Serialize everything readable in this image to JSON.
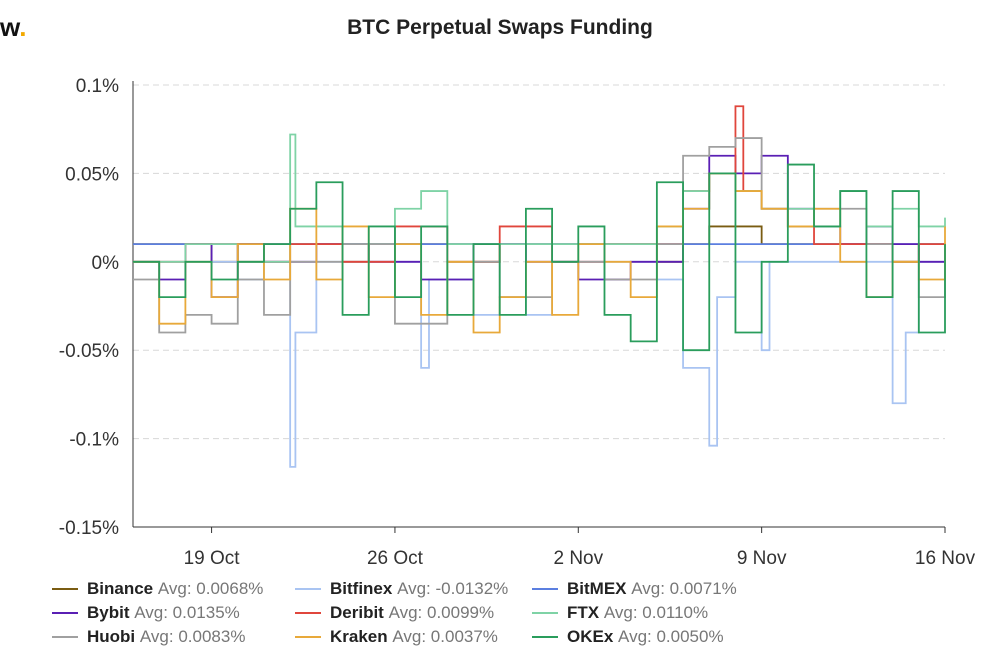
{
  "brand": {
    "text": "w",
    "dot": "."
  },
  "chart_data": {
    "type": "line",
    "title": "BTC Perpetual Swaps Funding",
    "xlabel": "",
    "ylabel": "",
    "x_ticks": [
      "19 Oct",
      "26 Oct",
      "2 Nov",
      "9 Nov",
      "16 Nov"
    ],
    "x_range": [
      "2020-10-16",
      "2020-11-17"
    ],
    "y_ticks": [
      "0.1%",
      "0.05%",
      "0%",
      "-0.05%",
      "-0.1%",
      "-0.15%"
    ],
    "ylim": [
      -0.15,
      0.1
    ],
    "grid": "horizontal dashed",
    "legend_position": "bottom",
    "series": [
      {
        "name": "Binance",
        "avg_label": "Avg: 0.0068%",
        "color": "#7a5c12",
        "values": [
          [
            0,
            0.01
          ],
          [
            1,
            0.01
          ],
          [
            2,
            0.01
          ],
          [
            3,
            0.0
          ],
          [
            4,
            0.01
          ],
          [
            5,
            0.01
          ],
          [
            6,
            0.01
          ],
          [
            7,
            0.01
          ],
          [
            8,
            0.0
          ],
          [
            9,
            0.01
          ],
          [
            10,
            0.01
          ],
          [
            11,
            0.01
          ],
          [
            12,
            0.01
          ],
          [
            13,
            0.0
          ],
          [
            14,
            0.01
          ],
          [
            15,
            0.01
          ],
          [
            16,
            0.01
          ],
          [
            17,
            0.01
          ],
          [
            18,
            0.01
          ],
          [
            19,
            0.01
          ],
          [
            20,
            0.0
          ],
          [
            21,
            0.01
          ],
          [
            22,
            0.02
          ],
          [
            23,
            0.02
          ],
          [
            24,
            0.01
          ],
          [
            25,
            0.01
          ],
          [
            26,
            0.01
          ],
          [
            27,
            0.01
          ],
          [
            28,
            0.01
          ],
          [
            29,
            0.0
          ],
          [
            30,
            0.01
          ],
          [
            31,
            0.01
          ]
        ]
      },
      {
        "name": "Bitfinex",
        "avg_label": "Avg: -0.0132%",
        "color": "#a9c4f2",
        "values": [
          [
            0,
            0.0
          ],
          [
            4,
            -0.01
          ],
          [
            5,
            -0.0
          ],
          [
            6,
            -0.116
          ],
          [
            6.2,
            -0.04
          ],
          [
            7,
            -0.0
          ],
          [
            10,
            -0.0
          ],
          [
            11,
            -0.06
          ],
          [
            11.3,
            -0.01
          ],
          [
            13,
            -0.03
          ],
          [
            14,
            -0.02
          ],
          [
            15,
            -0.03
          ],
          [
            16,
            -0.0
          ],
          [
            18,
            -0.0
          ],
          [
            20,
            -0.01
          ],
          [
            21,
            -0.06
          ],
          [
            22,
            -0.104
          ],
          [
            22.3,
            -0.02
          ],
          [
            23,
            0.0
          ],
          [
            24,
            -0.05
          ],
          [
            24.3,
            0.0
          ],
          [
            25,
            -0.0
          ],
          [
            26,
            -0.0
          ],
          [
            28,
            -0.0
          ],
          [
            29,
            -0.08
          ],
          [
            29.5,
            -0.04
          ],
          [
            30,
            -0.0
          ],
          [
            31,
            0.0
          ]
        ]
      },
      {
        "name": "BitMEX",
        "avg_label": "Avg: 0.0071%",
        "color": "#5b7fe0",
        "values": [
          [
            0,
            0.01
          ],
          [
            31,
            0.01
          ]
        ]
      },
      {
        "name": "Bybit",
        "avg_label": "Avg: 0.0135%",
        "color": "#5a1fb4",
        "values": [
          [
            0,
            0.0
          ],
          [
            1,
            -0.01
          ],
          [
            2,
            0.01
          ],
          [
            3,
            -0.02
          ],
          [
            4,
            0.01
          ],
          [
            5,
            0.0
          ],
          [
            7,
            0.01
          ],
          [
            9,
            0.0
          ],
          [
            11,
            -0.01
          ],
          [
            13,
            0.01
          ],
          [
            15,
            0.0
          ],
          [
            17,
            -0.01
          ],
          [
            19,
            0.0
          ],
          [
            21,
            0.03
          ],
          [
            22,
            0.06
          ],
          [
            23,
            0.05
          ],
          [
            24,
            0.06
          ],
          [
            25,
            0.03
          ],
          [
            26,
            0.02
          ],
          [
            27,
            0.01
          ],
          [
            28,
            0.02
          ],
          [
            29,
            0.01
          ],
          [
            30,
            0.0
          ],
          [
            31,
            0.0
          ]
        ]
      },
      {
        "name": "Deribit",
        "avg_label": "Avg: 0.0099%",
        "color": "#e0463c",
        "values": [
          [
            0,
            0.0
          ],
          [
            2,
            0.01
          ],
          [
            4,
            0.0
          ],
          [
            6,
            0.01
          ],
          [
            8,
            0.0
          ],
          [
            10,
            0.02
          ],
          [
            12,
            0.0
          ],
          [
            14,
            0.02
          ],
          [
            16,
            0.0
          ],
          [
            18,
            0.01
          ],
          [
            20,
            0.01
          ],
          [
            21,
            0.04
          ],
          [
            22,
            0.05
          ],
          [
            23,
            0.088
          ],
          [
            23.3,
            0.04
          ],
          [
            24,
            0.03
          ],
          [
            25,
            0.02
          ],
          [
            26,
            0.01
          ],
          [
            28,
            0.01
          ],
          [
            29,
            0.0
          ],
          [
            30,
            0.01
          ],
          [
            31,
            0.0
          ]
        ]
      },
      {
        "name": "FTX",
        "avg_label": "Avg: 0.0110%",
        "color": "#7fd3a6",
        "values": [
          [
            0,
            0.0
          ],
          [
            2,
            0.01
          ],
          [
            4,
            0.0
          ],
          [
            6,
            0.072
          ],
          [
            6.2,
            0.02
          ],
          [
            8,
            0.01
          ],
          [
            10,
            0.03
          ],
          [
            11,
            0.04
          ],
          [
            12,
            0.01
          ],
          [
            14,
            0.01
          ],
          [
            16,
            0.01
          ],
          [
            18,
            0.01
          ],
          [
            20,
            0.02
          ],
          [
            21,
            0.04
          ],
          [
            22,
            0.05
          ],
          [
            23,
            0.04
          ],
          [
            24,
            0.03
          ],
          [
            25,
            0.03
          ],
          [
            26,
            0.02
          ],
          [
            27,
            0.04
          ],
          [
            28,
            0.02
          ],
          [
            29,
            0.03
          ],
          [
            30,
            0.02
          ],
          [
            31,
            0.025
          ]
        ]
      },
      {
        "name": "Huobi",
        "avg_label": "Avg: 0.0083%",
        "color": "#a0a0a0",
        "values": [
          [
            0,
            -0.01
          ],
          [
            1,
            -0.04
          ],
          [
            2,
            -0.03
          ],
          [
            3,
            -0.035
          ],
          [
            4,
            -0.01
          ],
          [
            5,
            -0.03
          ],
          [
            6,
            0.0
          ],
          [
            8,
            0.01
          ],
          [
            10,
            -0.035
          ],
          [
            12,
            0.0
          ],
          [
            14,
            -0.02
          ],
          [
            16,
            0.0
          ],
          [
            18,
            -0.01
          ],
          [
            20,
            0.01
          ],
          [
            21,
            0.06
          ],
          [
            22,
            0.065
          ],
          [
            23,
            0.07
          ],
          [
            24,
            0.03
          ],
          [
            25,
            0.02
          ],
          [
            26,
            0.03
          ],
          [
            28,
            0.01
          ],
          [
            29,
            0.0
          ],
          [
            30,
            -0.02
          ],
          [
            31,
            0.0
          ]
        ]
      },
      {
        "name": "Kraken",
        "avg_label": "Avg: 0.0037%",
        "color": "#e8a93a",
        "values": [
          [
            0,
            0.0
          ],
          [
            1,
            -0.035
          ],
          [
            2,
            0.0
          ],
          [
            3,
            -0.02
          ],
          [
            4,
            0.01
          ],
          [
            5,
            -0.01
          ],
          [
            6,
            0.03
          ],
          [
            7,
            -0.01
          ],
          [
            8,
            0.02
          ],
          [
            9,
            -0.02
          ],
          [
            10,
            0.01
          ],
          [
            11,
            -0.03
          ],
          [
            12,
            0.0
          ],
          [
            13,
            -0.04
          ],
          [
            14,
            -0.02
          ],
          [
            15,
            0.0
          ],
          [
            16,
            -0.03
          ],
          [
            17,
            0.01
          ],
          [
            18,
            0.0
          ],
          [
            19,
            -0.02
          ],
          [
            20,
            0.02
          ],
          [
            21,
            0.03
          ],
          [
            22,
            0.05
          ],
          [
            23,
            0.04
          ],
          [
            24,
            0.03
          ],
          [
            25,
            0.02
          ],
          [
            26,
            0.03
          ],
          [
            27,
            0.0
          ],
          [
            28,
            -0.02
          ],
          [
            29,
            0.0
          ],
          [
            30,
            -0.01
          ],
          [
            31,
            0.02
          ]
        ]
      },
      {
        "name": "OKEx",
        "avg_label": "Avg: 0.0050%",
        "color": "#2a9d5c",
        "values": [
          [
            0,
            0.0
          ],
          [
            1,
            -0.02
          ],
          [
            2,
            0.0
          ],
          [
            3,
            -0.01
          ],
          [
            4,
            0.0
          ],
          [
            5,
            0.01
          ],
          [
            6,
            0.03
          ],
          [
            7,
            0.045
          ],
          [
            8,
            -0.03
          ],
          [
            9,
            0.02
          ],
          [
            10,
            -0.02
          ],
          [
            11,
            0.02
          ],
          [
            12,
            -0.03
          ],
          [
            13,
            0.01
          ],
          [
            14,
            -0.03
          ],
          [
            15,
            0.03
          ],
          [
            16,
            0.0
          ],
          [
            17,
            0.02
          ],
          [
            18,
            -0.03
          ],
          [
            19,
            -0.045
          ],
          [
            20,
            0.045
          ],
          [
            21,
            -0.05
          ],
          [
            22,
            0.05
          ],
          [
            23,
            -0.04
          ],
          [
            24,
            0.0
          ],
          [
            25,
            0.055
          ],
          [
            26,
            0.02
          ],
          [
            27,
            0.04
          ],
          [
            28,
            -0.02
          ],
          [
            29,
            0.04
          ],
          [
            30,
            -0.04
          ],
          [
            31,
            0.01
          ]
        ]
      }
    ]
  }
}
